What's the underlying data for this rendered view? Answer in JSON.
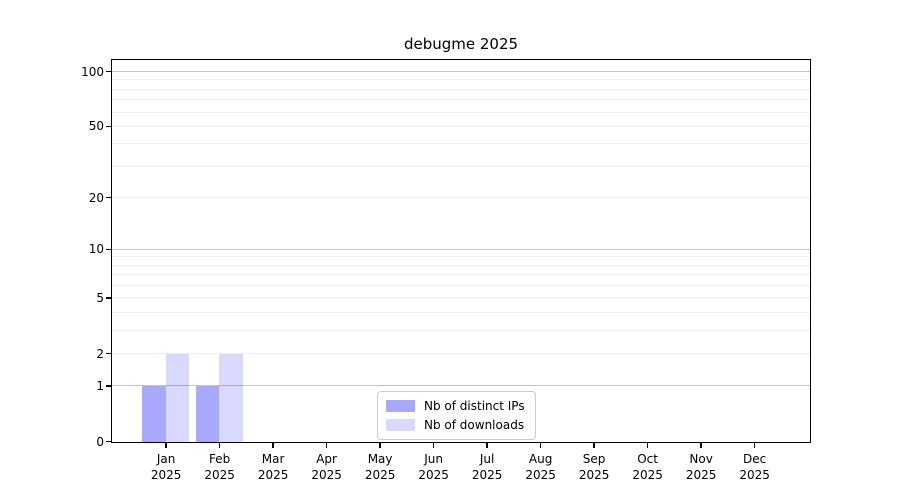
{
  "chart_data": {
    "type": "bar",
    "title": "debugme 2025",
    "categories": [
      "Jan",
      "Feb",
      "Mar",
      "Apr",
      "May",
      "Jun",
      "Jul",
      "Aug",
      "Sep",
      "Oct",
      "Nov",
      "Dec"
    ],
    "year": "2025",
    "series": [
      {
        "name": "Nb of distinct IPs",
        "color": "rgba(0,0,255,0.34)",
        "values": [
          1,
          1,
          0,
          0,
          0,
          0,
          0,
          0,
          0,
          0,
          0,
          0
        ]
      },
      {
        "name": "Nb of downloads",
        "color": "rgba(0,0,255,0.15)",
        "values": [
          2,
          2,
          0,
          0,
          0,
          0,
          0,
          0,
          0,
          0,
          0,
          0
        ]
      }
    ],
    "y_axis": {
      "scale": "log1p",
      "ticks": [
        0,
        1,
        2,
        5,
        10,
        20,
        50,
        100
      ],
      "major_gridlines": [
        1,
        10,
        100
      ],
      "minor_gridlines": [
        2,
        3,
        4,
        5,
        6,
        7,
        8,
        9,
        20,
        30,
        40,
        50,
        60,
        70,
        80,
        90
      ],
      "max": 115
    },
    "x_axis": {
      "gridlines": false
    },
    "legend_position": "lower center",
    "grid": true
  }
}
